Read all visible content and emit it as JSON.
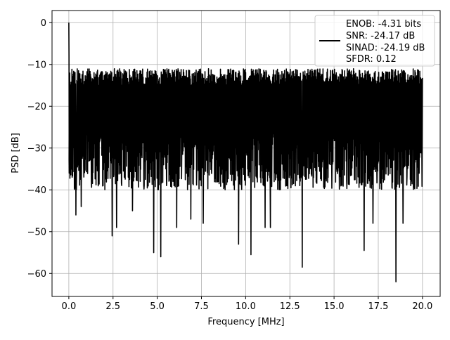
{
  "chart_data": {
    "type": "line",
    "xlabel": "Frequency [MHz]",
    "ylabel": "PSD [dB]",
    "xlim": [
      -0.95,
      21.0
    ],
    "ylim": [
      -65.5,
      2.9
    ],
    "x_ticks": [
      0.0,
      2.5,
      5.0,
      7.5,
      10.0,
      12.5,
      15.0,
      17.5,
      20.0
    ],
    "x_tick_labels": [
      "0.0",
      "2.5",
      "5.0",
      "7.5",
      "10.0",
      "12.5",
      "15.0",
      "17.5",
      "20.0"
    ],
    "y_ticks": [
      0,
      -10,
      -20,
      -30,
      -40,
      -50,
      -60
    ],
    "y_tick_labels": [
      "0",
      "−10",
      "−20",
      "−30",
      "−40",
      "−50",
      "−60"
    ],
    "grid": true,
    "legend_position": "top-right",
    "series": [
      {
        "color": "#000000",
        "x_range": [
          0.0,
          20.0
        ],
        "peak": {
          "x": 0.0,
          "y": 0.0
        },
        "typical_upper_envelope": -11,
        "typical_lower_envelope": -36,
        "deep_minima": [
          {
            "x": 0.4,
            "y": -46
          },
          {
            "x": 0.7,
            "y": -44
          },
          {
            "x": 2.45,
            "y": -51
          },
          {
            "x": 2.7,
            "y": -49
          },
          {
            "x": 3.6,
            "y": -45
          },
          {
            "x": 4.8,
            "y": -55
          },
          {
            "x": 5.2,
            "y": -56
          },
          {
            "x": 6.1,
            "y": -49
          },
          {
            "x": 6.9,
            "y": -47
          },
          {
            "x": 7.6,
            "y": -48
          },
          {
            "x": 9.6,
            "y": -53
          },
          {
            "x": 10.3,
            "y": -55.5
          },
          {
            "x": 11.1,
            "y": -49
          },
          {
            "x": 11.4,
            "y": -49
          },
          {
            "x": 13.2,
            "y": -58.5
          },
          {
            "x": 16.7,
            "y": -54.5
          },
          {
            "x": 17.2,
            "y": -48
          },
          {
            "x": 18.5,
            "y": -62
          },
          {
            "x": 18.9,
            "y": -48
          }
        ]
      }
    ],
    "legend": {
      "line_color": "#000000",
      "lines": [
        "ENOB: -4.31 bits",
        "SNR: -24.17 dB",
        "SINAD: -24.19 dB",
        "SFDR: 0.12"
      ]
    }
  }
}
